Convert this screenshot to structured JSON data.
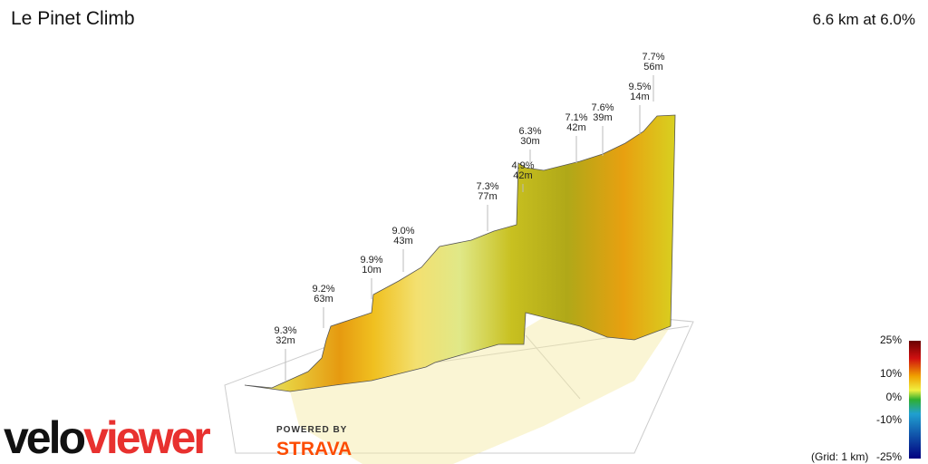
{
  "header": {
    "title": "Le Pinet Climb",
    "summary": "6.6 km at 6.0%"
  },
  "annotations": [
    {
      "grade": "9.3%",
      "length": "32m"
    },
    {
      "grade": "9.2%",
      "length": "63m"
    },
    {
      "grade": "9.9%",
      "length": "10m"
    },
    {
      "grade": "9.0%",
      "length": "43m"
    },
    {
      "grade": "7.3%",
      "length": "77m"
    },
    {
      "grade": "4.9%",
      "length": "42m"
    },
    {
      "grade": "6.3%",
      "length": "30m"
    },
    {
      "grade": "7.1%",
      "length": "42m"
    },
    {
      "grade": "7.6%",
      "length": "39m"
    },
    {
      "grade": "9.5%",
      "length": "14m"
    },
    {
      "grade": "7.7%",
      "length": "56m"
    }
  ],
  "legend": {
    "ticks": [
      "25%",
      "10%",
      "0%",
      "-10%",
      "-25%"
    ],
    "grid_label": "(Grid: 1 km)"
  },
  "logos": {
    "velo": "velo",
    "viewer": "viewer",
    "powered_by": "POWERED BY",
    "strava": "STRAVA"
  }
}
